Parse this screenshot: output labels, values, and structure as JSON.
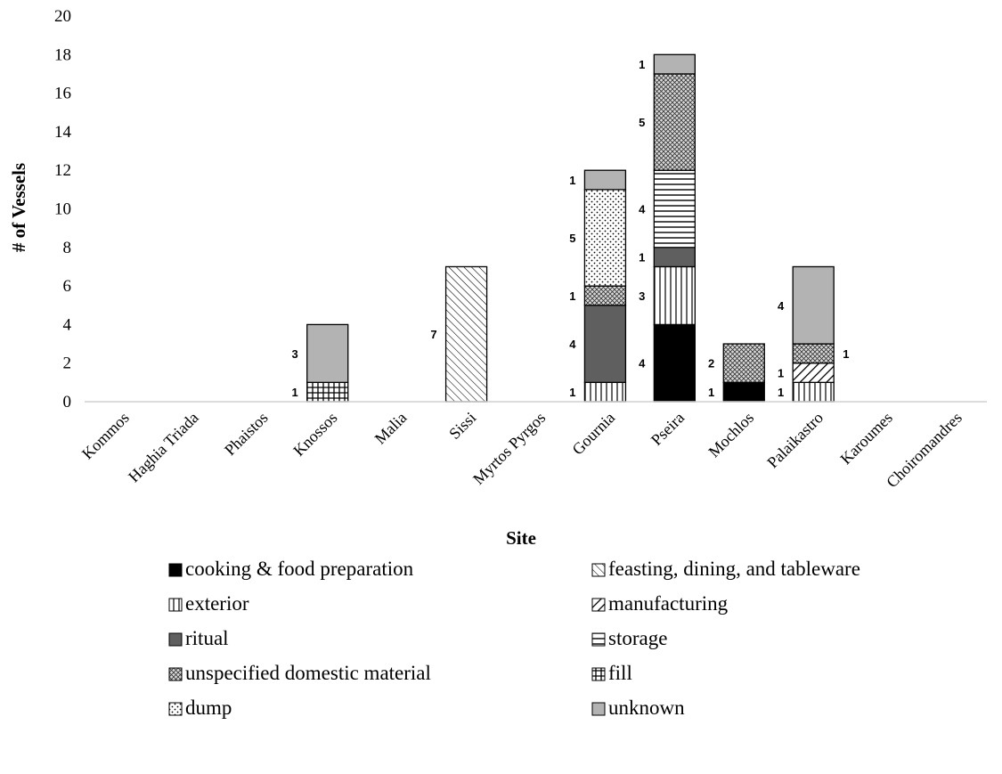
{
  "chart_data": {
    "type": "bar",
    "stacked": true,
    "title": "",
    "xlabel": "Site",
    "ylabel": "# of Vessels",
    "ylim": [
      0,
      20
    ],
    "yticks": [
      0,
      2,
      4,
      6,
      8,
      10,
      12,
      14,
      16,
      18,
      20
    ],
    "grid": false,
    "legend_position": "bottom",
    "categories": [
      "Kommos",
      "Haghia Triada",
      "Phaistos",
      "Knossos",
      "Malia",
      "Sissi",
      "Myrtos Pyrgos",
      "Gournia",
      "Pseira",
      "Mochlos",
      "Palaikastro",
      "Karoumes",
      "Choiromandres"
    ],
    "series": [
      {
        "name": "cooking & food preparation",
        "pattern": "solid-black",
        "values": [
          0,
          0,
          0,
          0,
          0,
          0,
          0,
          0,
          4,
          1,
          0,
          0,
          0
        ]
      },
      {
        "name": "exterior",
        "pattern": "vertical-lines",
        "values": [
          0,
          0,
          0,
          0,
          0,
          0,
          0,
          1,
          3,
          0,
          1,
          0,
          0
        ]
      },
      {
        "name": "feasting, dining, and tableware",
        "pattern": "diagonal-lines",
        "values": [
          0,
          0,
          0,
          0,
          0,
          7,
          0,
          0,
          0,
          0,
          0,
          0,
          0
        ]
      },
      {
        "name": "manufacturing",
        "pattern": "wide-diagonal",
        "values": [
          0,
          0,
          0,
          0,
          0,
          0,
          0,
          0,
          0,
          0,
          1,
          0,
          0
        ]
      },
      {
        "name": "ritual",
        "pattern": "dark-gray",
        "values": [
          0,
          0,
          0,
          0,
          0,
          0,
          0,
          4,
          1,
          0,
          0,
          0,
          0
        ]
      },
      {
        "name": "storage",
        "pattern": "horizontal-lines",
        "values": [
          0,
          0,
          0,
          0,
          0,
          0,
          0,
          0,
          4,
          0,
          0,
          0,
          0
        ]
      },
      {
        "name": "unspecified domestic material",
        "pattern": "crosshatch-diagonal",
        "values": [
          0,
          0,
          0,
          0,
          0,
          0,
          0,
          1,
          5,
          2,
          1,
          0,
          0
        ]
      },
      {
        "name": "fill",
        "pattern": "grid",
        "values": [
          0,
          0,
          0,
          1,
          0,
          0,
          0,
          0,
          0,
          0,
          0,
          0,
          0
        ]
      },
      {
        "name": "dump",
        "pattern": "dots",
        "values": [
          0,
          0,
          0,
          0,
          0,
          0,
          0,
          5,
          0,
          0,
          0,
          0,
          0
        ]
      },
      {
        "name": "unknown",
        "pattern": "light-gray",
        "values": [
          0,
          0,
          0,
          3,
          0,
          0,
          0,
          1,
          1,
          0,
          4,
          0,
          0
        ]
      }
    ],
    "legend_columns": [
      [
        "cooking & food preparation",
        "exterior",
        "ritual",
        "unspecified domestic material",
        "dump"
      ],
      [
        "feasting, dining, and tableware",
        "manufacturing",
        "storage",
        "fill",
        "unknown"
      ]
    ]
  }
}
